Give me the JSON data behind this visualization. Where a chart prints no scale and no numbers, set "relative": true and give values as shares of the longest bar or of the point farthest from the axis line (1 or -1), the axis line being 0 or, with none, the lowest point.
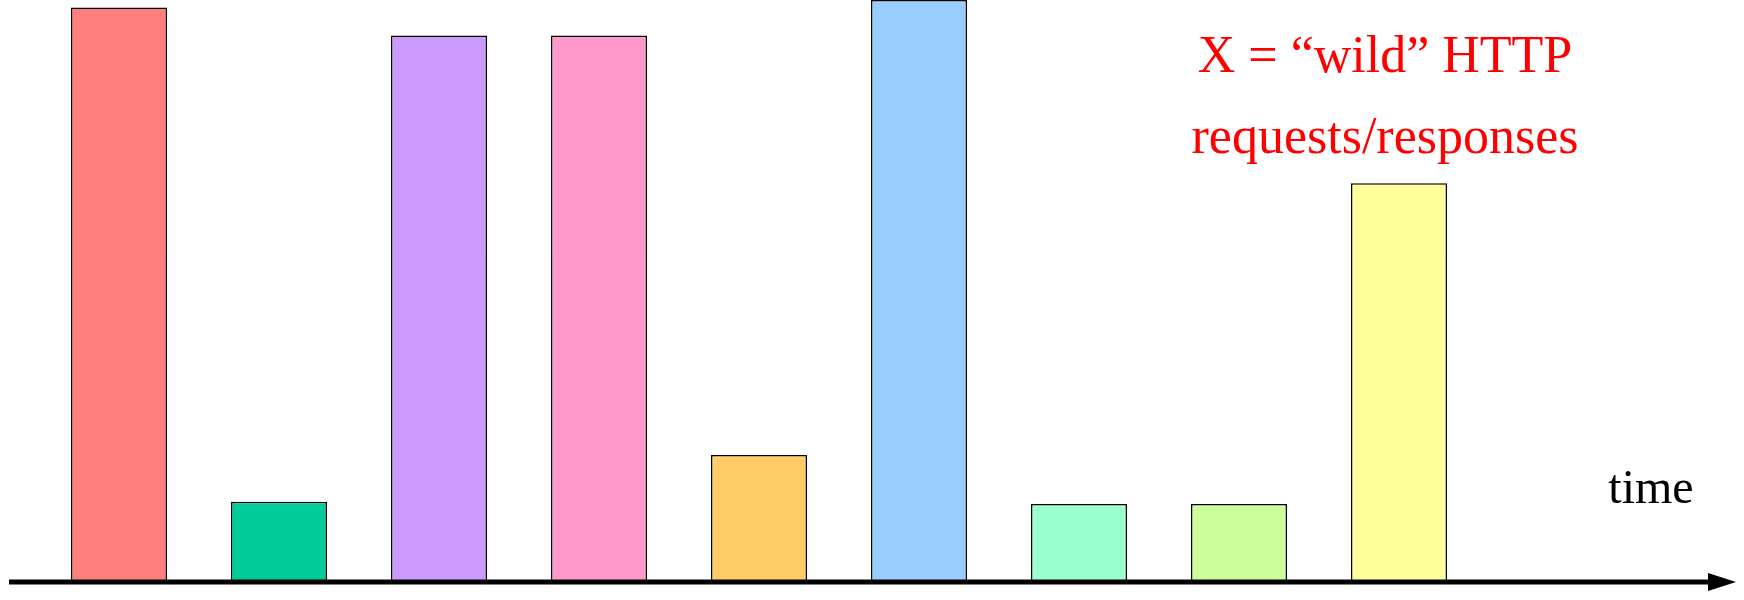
{
  "chart_data": {
    "type": "bar",
    "relative": true,
    "xlabel": "time",
    "categories": [
      null,
      null,
      null,
      null,
      null,
      null,
      null,
      null,
      null
    ],
    "values": [
      0.987,
      0.138,
      0.939,
      0.939,
      0.218,
      1,
      0.134,
      0.134,
      0.685
    ],
    "colors": [
      "#ff7f7f",
      "#00cc99",
      "#cc99ff",
      "#ff99cc",
      "#ffcc66",
      "#99ccff",
      "#99ffcc",
      "#ccff99",
      "#ffff99"
    ],
    "annotations": [
      "X = “wild” HTTP",
      "requests/responses"
    ],
    "grid": false,
    "legend": false
  }
}
